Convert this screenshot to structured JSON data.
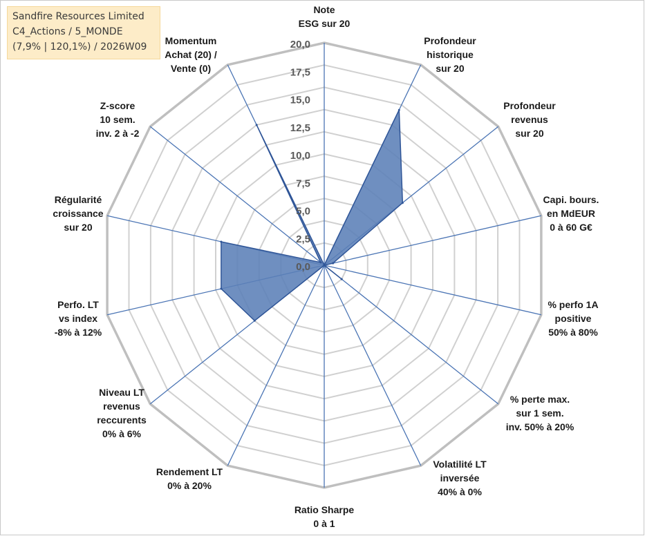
{
  "info": {
    "company": "Sandfire Resources Limited",
    "category": "C4_Actions / 5_MONDE",
    "stats": "(7,9% | 120,1%) / 2026W09"
  },
  "chart_data": {
    "type": "radar",
    "r_min": 0,
    "r_max": 20,
    "tick_values": [
      0,
      2.5,
      5,
      7.5,
      10,
      12.5,
      15,
      17.5,
      20
    ],
    "tick_labels": [
      "0,0",
      "2,5",
      "5,0",
      "7,5",
      "10,0",
      "12,5",
      "15,0",
      "17,5",
      "20,0"
    ],
    "axes": [
      {
        "label": [
          "Note",
          "ESG sur 20"
        ],
        "value": 0
      },
      {
        "label": [
          "Profondeur",
          "historique",
          "sur 20"
        ],
        "value": 15.5
      },
      {
        "label": [
          "Profondeur",
          "revenus",
          "sur 20"
        ],
        "value": 9.0
      },
      {
        "label": [
          "Capi. bours.",
          "en MdEUR",
          "0 à 60 G€"
        ],
        "value": 0.8
      },
      {
        "label": [
          "% perfo 1A",
          "positive",
          "50% à 80%"
        ],
        "value": 0
      },
      {
        "label": [
          "% perte max.",
          "sur 1 sem.",
          "inv. 50% à 20%"
        ],
        "value": 2.0
      },
      {
        "label": [
          "Volatilité LT",
          "inversée",
          "40% à 0%"
        ],
        "value": 0
      },
      {
        "label": [
          "Ratio Sharpe",
          "0 à 1"
        ],
        "value": 0
      },
      {
        "label": [
          "Rendement LT",
          "0% à 20%"
        ],
        "value": 0
      },
      {
        "label": [
          "Niveau LT",
          "revenus",
          "reccurents",
          "0% à 6%"
        ],
        "value": 8.0
      },
      {
        "label": [
          "Perfo. LT",
          "vs index",
          "-8% à 12%"
        ],
        "value": 9.5
      },
      {
        "label": [
          "Régularité",
          "croissance",
          "sur 20"
        ],
        "value": 9.5
      },
      {
        "label": [
          "Z-score",
          "10 sem.",
          "inv. 2 à -2"
        ],
        "value": 0.4
      },
      {
        "label": [
          "Momentum",
          "Achat (20) /",
          "Vente (0)"
        ],
        "value": 14.0
      }
    ]
  }
}
